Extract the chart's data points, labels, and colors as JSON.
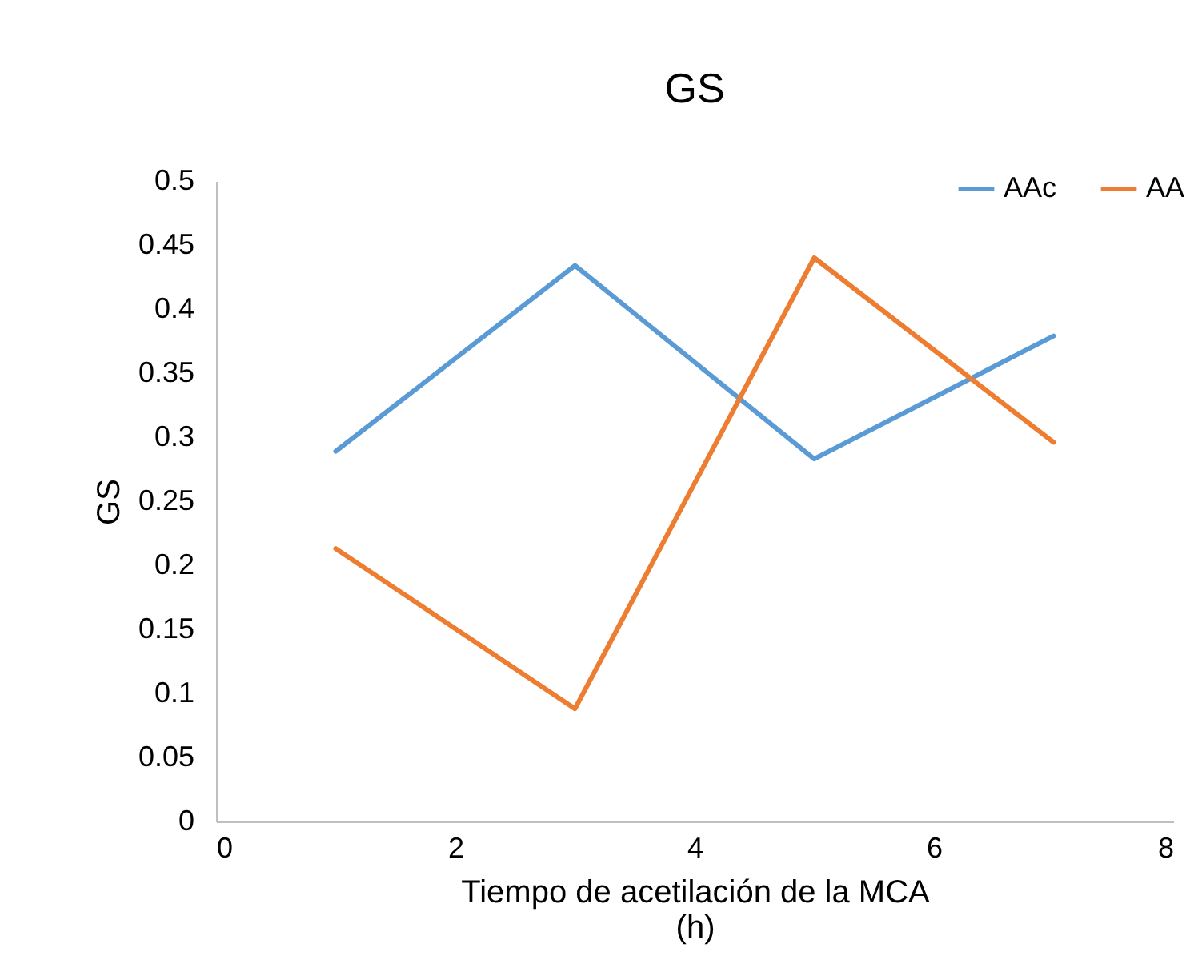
{
  "chart_data": {
    "type": "line",
    "title": "GS",
    "xlabel": "Tiempo de acetilación de la MCA (h)",
    "ylabel": "GS",
    "x": [
      1,
      3,
      5,
      7
    ],
    "series": [
      {
        "name": "AAc",
        "color": "#5b9bd5",
        "values": [
          0.289,
          0.434,
          0.283,
          0.379
        ]
      },
      {
        "name": "AA",
        "color": "#ed7d31",
        "values": [
          0.213,
          0.088,
          0.44,
          0.296
        ]
      }
    ],
    "xlim": [
      0,
      8
    ],
    "xticks": [
      0,
      2,
      4,
      6,
      8
    ],
    "ylim": [
      0,
      0.5
    ],
    "yticks": [
      0,
      0.05,
      0.1,
      0.15,
      0.2,
      0.25,
      0.3,
      0.35,
      0.4,
      0.45,
      0.5
    ],
    "grid": false,
    "legend": "top right",
    "marker": "none",
    "line_style": "solid"
  }
}
